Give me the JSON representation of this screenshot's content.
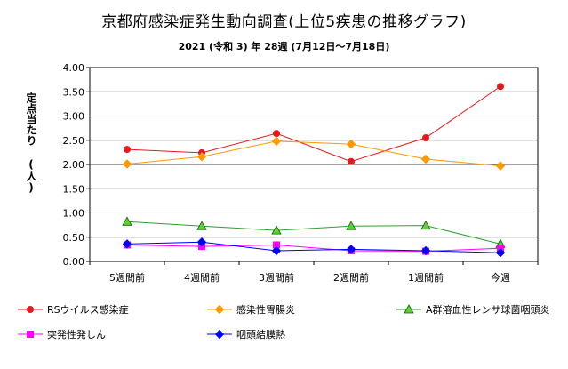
{
  "chart_data": {
    "type": "line",
    "title": "京都府感染症発生動向調査(上位5疾患の推移グラフ)",
    "subtitle": "2021 (令和 3) 年 28週 (7月12日〜7月18日)",
    "ylabel": "定点当たり (人)",
    "xlabel": "",
    "categories": [
      "5週間前",
      "4週間前",
      "3週間前",
      "2週間前",
      "1週間前",
      "今週"
    ],
    "ylim": [
      0,
      4.0
    ],
    "yticks": [
      "0.00",
      "0.50",
      "1.00",
      "1.50",
      "2.00",
      "2.50",
      "3.00",
      "3.50",
      "4.00"
    ],
    "grid": true,
    "legend_position": "bottom",
    "series": [
      {
        "name": "RSウイルス感染症",
        "color": "#e41a1c",
        "marker": "circle",
        "values": [
          2.31,
          2.24,
          2.64,
          2.06,
          2.55,
          3.61
        ]
      },
      {
        "name": "感染性胃腸炎",
        "color": "#ff9900",
        "marker": "diamond",
        "values": [
          2.01,
          2.16,
          2.48,
          2.42,
          2.11,
          1.97
        ]
      },
      {
        "name": "A群溶血性レンサ球菌咽頭炎",
        "color": "#2ca02c",
        "marker": "triangle",
        "values": [
          0.82,
          0.73,
          0.64,
          0.73,
          0.74,
          0.36
        ]
      },
      {
        "name": "突発性発しん",
        "color": "#ff00ff",
        "marker": "square",
        "values": [
          0.34,
          0.31,
          0.34,
          0.22,
          0.21,
          0.27
        ]
      },
      {
        "name": "咽頭結膜熱",
        "color": "#0000ff",
        "marker": "diamond",
        "values": [
          0.36,
          0.4,
          0.22,
          0.25,
          0.22,
          0.18
        ]
      }
    ]
  }
}
